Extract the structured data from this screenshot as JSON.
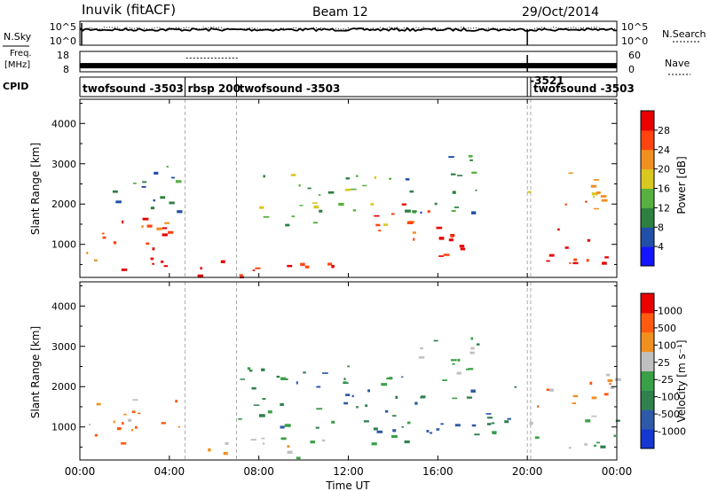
{
  "header": {
    "station": "Inuvik (fitACF)",
    "beam": "Beam 12",
    "date": "29/Oct/2014"
  },
  "left_labels": {
    "nsky": "N.Sky",
    "freq_line1": "Freq.",
    "freq_line2": "[MHz]",
    "cpid": "CPID"
  },
  "right_labels": {
    "nsearch": "N.Search",
    "nave": "Nave"
  },
  "chart_data": [
    {
      "type": "line",
      "name": "noise-panel",
      "left_axis": {
        "label": "N.Sky",
        "ticks": [
          "10^5",
          "10^0"
        ]
      },
      "right_axis": {
        "label": "N.Search",
        "ticks": [
          "10^5",
          "10^0"
        ]
      },
      "x": [
        "00:00",
        "04:00",
        "08:00",
        "12:00",
        "16:00",
        "20:00",
        "00:00"
      ],
      "series": [
        {
          "name": "N.Sky",
          "level_frac_from_top": 0.35
        },
        {
          "name": "N.Search",
          "level_frac_from_top": 0.3
        }
      ]
    },
    {
      "type": "line",
      "name": "frequency-panel",
      "left_axis": {
        "label": "Freq. [MHz]",
        "ticks": [
          "18",
          "8"
        ],
        "ylim": [
          8,
          18
        ]
      },
      "right_axis": {
        "label": "Nave",
        "ticks": [
          "60",
          "0"
        ],
        "ylim": [
          0,
          60
        ]
      },
      "x_hours": [
        0,
        24
      ],
      "freq_mhz": 11,
      "nave_segments": [
        {
          "start": 4.75,
          "end": 7.1,
          "value": 40
        }
      ]
    },
    {
      "type": "table",
      "name": "cpid-bar",
      "segments": [
        {
          "start": 0,
          "end": 4.7,
          "label": "twofsound -3503"
        },
        {
          "start": 4.7,
          "end": 7.0,
          "label": "rbsp 200"
        },
        {
          "start": 7.0,
          "end": 20.0,
          "label": "twofsound -3503"
        },
        {
          "start": 20.0,
          "end": 20.15,
          "label": "-3521"
        },
        {
          "start": 20.15,
          "end": 24,
          "label": "twofsound -3503"
        }
      ]
    },
    {
      "type": "heatmap",
      "name": "power-panel",
      "ylabel": "Slant Range [km]",
      "ylim": [
        180,
        4600
      ],
      "yticks": [
        1000,
        2000,
        3000,
        4000
      ],
      "xlim_hours": [
        0,
        24
      ],
      "colorbar": {
        "label": "Power [dB]",
        "ticks": [
          "4",
          "8",
          "12",
          "16",
          "20",
          "24",
          "28"
        ],
        "colors": [
          "#1414ff",
          "#2050a8",
          "#2e8040",
          "#58b040",
          "#d8c820",
          "#f09020",
          "#ff4410",
          "#e80000"
        ]
      },
      "regions": [
        {
          "h0": 0.1,
          "h1": 4.5,
          "r0": 550,
          "r1": 1700,
          "c": 6
        },
        {
          "h0": 1.5,
          "h1": 4.5,
          "r0": 250,
          "r1": 700,
          "c": 7
        },
        {
          "h0": 5.0,
          "h1": 12.0,
          "r0": 200,
          "r1": 700,
          "c": 7
        },
        {
          "h0": 13.0,
          "h1": 16.0,
          "r0": 1100,
          "r1": 2200,
          "c": 6
        },
        {
          "h0": 16.0,
          "h1": 19.5,
          "r0": 650,
          "r1": 1300,
          "c": 7
        },
        {
          "h0": 20.0,
          "h1": 24.0,
          "r0": 550,
          "r1": 1400,
          "c": 7
        },
        {
          "h0": 8.0,
          "h1": 14.0,
          "r0": 1500,
          "r1": 2800,
          "c": 3
        },
        {
          "h0": 14.5,
          "h1": 18.0,
          "r0": 1800,
          "r1": 3300,
          "c": 2
        },
        {
          "h0": 1.0,
          "h1": 4.5,
          "r0": 1800,
          "r1": 3000,
          "c": 2
        },
        {
          "h0": 20.0,
          "h1": 24.0,
          "r0": 1800,
          "r1": 2800,
          "c": 5
        }
      ]
    },
    {
      "type": "heatmap",
      "name": "velocity-panel",
      "ylabel": "Slant Range [km]",
      "xlabel": "Time UT",
      "ylim": [
        180,
        4600
      ],
      "yticks": [
        1000,
        2000,
        3000,
        4000
      ],
      "xlim_hours": [
        0,
        24
      ],
      "xticks": [
        "00:00",
        "04:00",
        "08:00",
        "12:00",
        "16:00",
        "20:00",
        "00:00"
      ],
      "colorbar": {
        "label": "Velocity [m s⁻¹]",
        "ticks": [
          "1000",
          "500",
          "100",
          "25",
          "-25",
          "-100",
          "-500",
          "-1000"
        ],
        "colors": [
          "#1438d0",
          "#2e5aa8",
          "#308050",
          "#3aa048",
          "#c0c0c0",
          "#f09020",
          "#ff5a10",
          "#e80000"
        ]
      },
      "regions": [
        {
          "h0": 0.1,
          "h1": 4.5,
          "r0": 550,
          "r1": 1700,
          "c": 5
        },
        {
          "h0": 5.0,
          "h1": 12.0,
          "r0": 250,
          "r1": 750,
          "c": 4
        },
        {
          "h0": 7.0,
          "h1": 13.0,
          "r0": 1000,
          "r1": 2600,
          "c": 2
        },
        {
          "h0": 12.5,
          "h1": 19.5,
          "r0": 600,
          "r1": 2300,
          "c": 2
        },
        {
          "h0": 14.5,
          "h1": 18.0,
          "r0": 2200,
          "r1": 3300,
          "c": 3
        },
        {
          "h0": 20.0,
          "h1": 24.0,
          "r0": 1500,
          "r1": 2500,
          "c": 5
        },
        {
          "h0": 20.0,
          "h1": 24.0,
          "r0": 500,
          "r1": 1300,
          "c": 3
        }
      ]
    }
  ]
}
